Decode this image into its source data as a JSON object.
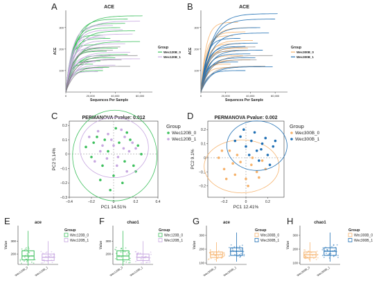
{
  "chart_data": [
    {
      "panel": "A",
      "type": "line",
      "title": "ACE",
      "xlabel": "Sequences Per Sample",
      "ylabel": "ACE",
      "xlim": [
        0,
        70000
      ],
      "ylim": [
        0,
        380
      ],
      "x_ticks": [
        {
          "v": 0,
          "l": "0"
        },
        {
          "v": 20000,
          "l": "20,000"
        },
        {
          "v": 40000,
          "l": "40,000"
        },
        {
          "v": 60000,
          "l": "60,000"
        }
      ],
      "y_ticks": [
        100,
        200,
        300
      ],
      "legend": {
        "title": "Group",
        "position": "right",
        "entries": [
          "Wec120B_0",
          "Wec120B_1"
        ]
      },
      "colors": [
        "#3cbf5c",
        "#c7a7e0"
      ],
      "series": [
        {
          "name": "Wec120B_0",
          "curves": [
            [
              355,
              62000
            ],
            [
              340,
              50000
            ],
            [
              320,
              48000
            ],
            [
              300,
              44000
            ],
            [
              285,
              56000
            ],
            [
              265,
              30000
            ],
            [
              250,
              36000
            ],
            [
              235,
              60000
            ],
            [
              220,
              25000
            ],
            [
              205,
              42000
            ],
            [
              190,
              33000
            ],
            [
              175,
              50000
            ],
            [
              160,
              40000
            ],
            [
              145,
              28000
            ],
            [
              130,
              22000
            ],
            [
              115,
              35000
            ],
            [
              100,
              30000
            ]
          ]
        },
        {
          "name": "Wec120B_1",
          "curves": [
            [
              330,
              60000
            ],
            [
              310,
              38000
            ],
            [
              290,
              46000
            ],
            [
              270,
              54000
            ],
            [
              255,
              32000
            ],
            [
              240,
              44000
            ],
            [
              225,
              48000
            ],
            [
              205,
              28000
            ],
            [
              185,
              52000
            ],
            [
              170,
              36000
            ],
            [
              155,
              60000
            ],
            [
              140,
              24000
            ],
            [
              125,
              40000
            ],
            [
              110,
              30000
            ],
            [
              95,
              26000
            ]
          ]
        }
      ]
    },
    {
      "panel": "B",
      "type": "line",
      "title": "ACE",
      "xlabel": "Sequences Per Sample",
      "ylabel": "ACE",
      "xlim": [
        0,
        70000
      ],
      "ylim": [
        0,
        380
      ],
      "x_ticks": [
        {
          "v": 0,
          "l": "0"
        },
        {
          "v": 20000,
          "l": "20,000"
        },
        {
          "v": 40000,
          "l": "40,000"
        },
        {
          "v": 60000,
          "l": "60,000"
        }
      ],
      "y_ticks": [
        100,
        200,
        300
      ],
      "legend": {
        "title": "Group",
        "position": "right",
        "entries": [
          "Wec300B_0",
          "Wec300B_1"
        ]
      },
      "colors": [
        "#f6b26b",
        "#1f6fb4"
      ],
      "series": [
        {
          "name": "Wec300B_0",
          "curves": [
            [
              325,
              30000
            ],
            [
              300,
              45000
            ],
            [
              280,
              36000
            ],
            [
              262,
              26000
            ],
            [
              240,
              42000
            ],
            [
              225,
              32000
            ],
            [
              205,
              38000
            ],
            [
              190,
              28000
            ],
            [
              170,
              34000
            ],
            [
              150,
              40000
            ],
            [
              130,
              24000
            ],
            [
              115,
              30000
            ]
          ]
        },
        {
          "name": "Wec300B_1",
          "curves": [
            [
              365,
              62000
            ],
            [
              340,
              60000
            ],
            [
              300,
              48000
            ],
            [
              275,
              55000
            ],
            [
              250,
              32000
            ],
            [
              228,
              46000
            ],
            [
              212,
              36000
            ],
            [
              195,
              50000
            ],
            [
              178,
              40000
            ],
            [
              160,
              44000
            ],
            [
              140,
              30000
            ],
            [
              118,
              58000
            ],
            [
              100,
              36000
            ]
          ]
        }
      ]
    },
    {
      "panel": "C",
      "type": "scatter",
      "title": "PERMANOVA Pvalue: 0.012",
      "xlabel": "PC1 14.51%",
      "ylabel": "PC2 5.14%",
      "xlim": [
        -0.4,
        0.4
      ],
      "ylim": [
        -0.3,
        0.23
      ],
      "x_ticks": [
        {
          "v": -0.4,
          "l": "−0.4"
        },
        {
          "v": -0.2,
          "l": "−0.2"
        },
        {
          "v": 0,
          "l": "0"
        },
        {
          "v": 0.2,
          "l": "0.2"
        },
        {
          "v": 0.4,
          "l": "0.4"
        }
      ],
      "y_ticks": [
        {
          "v": -0.3,
          "l": "−0.3"
        },
        {
          "v": -0.2,
          "l": "−0.2"
        },
        {
          "v": -0.1,
          "l": "−0.1"
        },
        {
          "v": 0,
          "l": "0"
        },
        {
          "v": 0.1,
          "l": "0.1"
        },
        {
          "v": 0.2,
          "l": "0.2"
        }
      ],
      "legend": {
        "title": "Group",
        "position": "right",
        "entries": [
          "Wec120B_0",
          "Wec120B_1"
        ]
      },
      "colors": [
        "#3cbf5c",
        "#c7a7e0"
      ],
      "series": [
        {
          "name": "Wec120B_0",
          "points": [
            [
              -0.25,
              0.05
            ],
            [
              -0.2,
              -0.02
            ],
            [
              -0.15,
              0.12
            ],
            [
              -0.1,
              -0.08
            ],
            [
              -0.05,
              0.02
            ],
            [
              0.0,
              -0.15
            ],
            [
              0.05,
              0.08
            ],
            [
              0.1,
              -0.05
            ],
            [
              0.15,
              0.1
            ],
            [
              0.2,
              -0.12
            ],
            [
              0.25,
              0.0
            ],
            [
              -0.12,
              -0.18
            ],
            [
              0.08,
              -0.2
            ],
            [
              -0.03,
              -0.25
            ],
            [
              0.12,
              0.15
            ],
            [
              -0.18,
              0.08
            ],
            [
              0.02,
              0.18
            ],
            [
              0.18,
              -0.08
            ],
            [
              -0.08,
              0.1
            ],
            [
              0.22,
              0.06
            ]
          ]
        },
        {
          "name": "Wec120B_1",
          "points": [
            [
              -0.22,
              0.12
            ],
            [
              -0.12,
              0.02
            ],
            [
              -0.05,
              0.14
            ],
            [
              0.0,
              0.06
            ],
            [
              0.04,
              -0.02
            ],
            [
              0.1,
              0.12
            ],
            [
              0.14,
              0.02
            ],
            [
              -0.17,
              -0.05
            ],
            [
              0.07,
              0.17
            ],
            [
              -0.02,
              0.1
            ],
            [
              0.17,
              0.08
            ],
            [
              -0.1,
              0.06
            ],
            [
              0.03,
              -0.08
            ],
            [
              0.12,
              -0.12
            ],
            [
              -0.06,
              -0.03
            ],
            [
              0.2,
              0.04
            ],
            [
              -0.14,
              0.16
            ],
            [
              0.09,
              0.04
            ]
          ]
        }
      ]
    },
    {
      "panel": "D",
      "type": "scatter",
      "title": "PERMANOVA Pvalue: 0.002",
      "xlabel": "PC1 12.41%",
      "ylabel": "PC2 9.1%",
      "xlim": [
        -0.35,
        0.35
      ],
      "ylim": [
        -0.28,
        0.26
      ],
      "x_ticks": [
        {
          "v": -0.2,
          "l": "−0.2"
        },
        {
          "v": 0,
          "l": "0"
        },
        {
          "v": 0.2,
          "l": "0.2"
        }
      ],
      "y_ticks": [
        {
          "v": -0.2,
          "l": "−0.2"
        },
        {
          "v": -0.1,
          "l": "−0.1"
        },
        {
          "v": 0,
          "l": "0"
        },
        {
          "v": 0.1,
          "l": "0.1"
        },
        {
          "v": 0.2,
          "l": "0.2"
        }
      ],
      "legend": {
        "title": "Group",
        "position": "right",
        "entries": [
          "Wec300B_0",
          "Wec300B_1"
        ]
      },
      "colors": [
        "#f6b26b",
        "#1f6fb4"
      ],
      "series": [
        {
          "name": "Wec300B_0",
          "points": [
            [
              -0.25,
              0.0
            ],
            [
              -0.2,
              -0.08
            ],
            [
              -0.15,
              0.05
            ],
            [
              -0.1,
              -0.12
            ],
            [
              -0.05,
              -0.03
            ],
            [
              0.0,
              -0.15
            ],
            [
              0.05,
              -0.05
            ],
            [
              0.1,
              -0.1
            ],
            [
              0.15,
              -0.02
            ],
            [
              -0.18,
              -0.15
            ],
            [
              -0.08,
              0.02
            ],
            [
              0.02,
              -0.2
            ],
            [
              0.12,
              -0.14
            ],
            [
              -0.12,
              -0.04
            ],
            [
              0.06,
              0.0
            ],
            [
              -0.22,
              0.05
            ],
            [
              0.18,
              -0.08
            ]
          ]
        },
        {
          "name": "Wec300B_1",
          "points": [
            [
              -0.05,
              0.15
            ],
            [
              0.0,
              0.08
            ],
            [
              0.05,
              0.12
            ],
            [
              0.1,
              0.05
            ],
            [
              0.15,
              0.1
            ],
            [
              0.2,
              0.02
            ],
            [
              0.25,
              0.08
            ],
            [
              -0.02,
              0.2
            ],
            [
              0.08,
              0.18
            ],
            [
              0.12,
              -0.02
            ],
            [
              0.18,
              0.14
            ],
            [
              0.22,
              -0.05
            ],
            [
              -0.1,
              0.12
            ],
            [
              0.03,
              0.02
            ],
            [
              0.14,
              0.06
            ],
            [
              0.27,
              0.12
            ]
          ]
        }
      ]
    },
    {
      "panel": "E",
      "type": "box",
      "title": "ace",
      "ylabel": "Value",
      "ylim": [
        120,
        420
      ],
      "y_ticks": [
        200,
        300
      ],
      "categories": [
        "Wec120B_0",
        "Wec120B_1"
      ],
      "legend": {
        "title": "Group",
        "position": "right",
        "entries": [
          "Wec120B_0",
          "Wec120B_1"
        ]
      },
      "colors": [
        "#3cbf5c",
        "#c7a7e0"
      ],
      "boxes": [
        {
          "min": 110,
          "q1": 155,
          "median": 185,
          "q3": 225,
          "max": 380
        },
        {
          "min": 120,
          "q1": 150,
          "median": 175,
          "q3": 200,
          "max": 300
        }
      ]
    },
    {
      "panel": "F",
      "type": "box",
      "title": "chao1",
      "ylabel": "Value",
      "ylim": [
        120,
        420
      ],
      "y_ticks": [
        200,
        300
      ],
      "categories": [
        "Wec120B_0",
        "Wec120B_1"
      ],
      "legend": {
        "title": "Group",
        "position": "right",
        "entries": [
          "Wec120B_0",
          "Wec120B_1"
        ]
      },
      "colors": [
        "#3cbf5c",
        "#c7a7e0"
      ],
      "boxes": [
        {
          "min": 110,
          "q1": 155,
          "median": 185,
          "q3": 225,
          "max": 380
        },
        {
          "min": 120,
          "q1": 150,
          "median": 175,
          "q3": 200,
          "max": 300
        }
      ]
    },
    {
      "panel": "G",
      "type": "box",
      "title": "ace",
      "ylabel": "Value",
      "ylim": [
        90,
        370
      ],
      "y_ticks": [
        100,
        200,
        300
      ],
      "categories": [
        "Wec300B_0",
        "Wec300B_1"
      ],
      "legend": {
        "title": "Group",
        "position": "right",
        "entries": [
          "Wec300B_0",
          "Wec300B_1"
        ]
      },
      "colors": [
        "#f6b26b",
        "#1f6fb4"
      ],
      "boxes": [
        {
          "min": 110,
          "q1": 140,
          "median": 160,
          "q3": 180,
          "max": 250
        },
        {
          "min": 110,
          "q1": 155,
          "median": 185,
          "q3": 210,
          "max": 320
        }
      ]
    },
    {
      "panel": "H",
      "type": "box",
      "title": "chao1",
      "ylabel": "Value",
      "ylim": [
        90,
        370
      ],
      "y_ticks": [
        100,
        200,
        300
      ],
      "categories": [
        "Wec300B_0",
        "Wec300B_1"
      ],
      "legend": {
        "title": "Group",
        "position": "right",
        "entries": [
          "Wec300B_0",
          "Wec300B_1"
        ]
      },
      "colors": [
        "#f6b26b",
        "#1f6fb4"
      ],
      "boxes": [
        {
          "min": 110,
          "q1": 140,
          "median": 160,
          "q3": 180,
          "max": 250
        },
        {
          "min": 110,
          "q1": 155,
          "median": 185,
          "q3": 210,
          "max": 320
        }
      ]
    }
  ]
}
